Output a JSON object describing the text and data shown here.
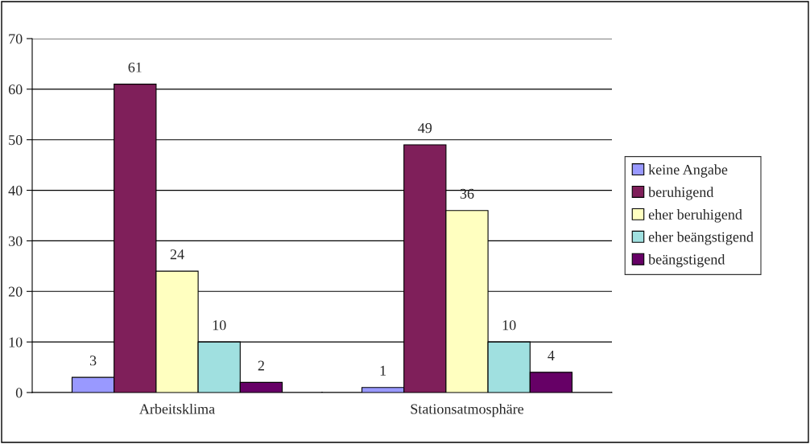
{
  "chart_data": {
    "type": "bar",
    "categories": [
      "Arbeitsklima",
      "Stationsatmosphäre"
    ],
    "series": [
      {
        "name": "keine Angabe",
        "color": "#9999ff",
        "values": [
          3,
          1
        ]
      },
      {
        "name": "beruhigend",
        "color": "#7f1f5a",
        "values": [
          61,
          49
        ]
      },
      {
        "name": "eher beruhigend",
        "color": "#ffffc0",
        "values": [
          24,
          36
        ]
      },
      {
        "name": "eher beängstigend",
        "color": "#a0e0e0",
        "values": [
          10,
          10
        ]
      },
      {
        "name": "beängstigend",
        "color": "#660066",
        "values": [
          2,
          4
        ]
      }
    ],
    "ylim": [
      0,
      70
    ],
    "yticks": [
      0,
      10,
      20,
      30,
      40,
      50,
      60,
      70
    ],
    "grid": "y",
    "legend": "right",
    "data_labels": true
  }
}
